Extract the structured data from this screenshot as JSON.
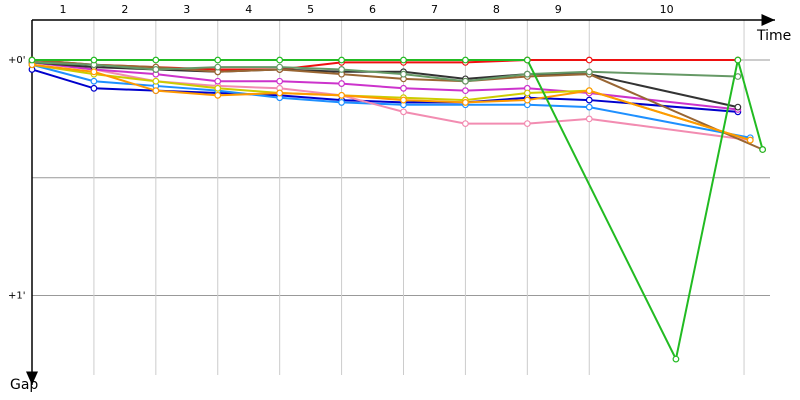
{
  "chart_data": {
    "type": "line",
    "x_label": "Time",
    "y_label": "Gap",
    "categories": [
      "1",
      "2",
      "3",
      "4",
      "5",
      "6",
      "7",
      "8",
      "9",
      "10"
    ],
    "lap_ends": [
      1,
      2,
      3,
      4,
      5,
      6,
      7,
      8,
      9,
      11.5
    ],
    "xlim": [
      0,
      12
    ],
    "ylim": [
      -0.17,
      1.38
    ],
    "yticks": [
      {
        "value": 0,
        "label": "+0'"
      },
      {
        "value": 0.5,
        "label": null
      },
      {
        "value": 1,
        "label": "+1'"
      }
    ],
    "grid": true,
    "series": [
      {
        "color": "#ee1111",
        "x": [
          0,
          1,
          2,
          3,
          4,
          5,
          6,
          7,
          8,
          9,
          11.4
        ],
        "values": [
          0,
          0.02,
          0.03,
          0.04,
          0.04,
          0.01,
          0.01,
          0.01,
          0,
          0,
          0
        ]
      },
      {
        "color": "#0000cc",
        "x": [
          0,
          1,
          2,
          3,
          4,
          5,
          6,
          7,
          8,
          9,
          11.4
        ],
        "values": [
          0.04,
          0.12,
          0.13,
          0.14,
          0.15,
          0.17,
          0.18,
          0.18,
          0.16,
          0.17,
          0.22
        ]
      },
      {
        "color": "#1e90ff",
        "x": [
          0,
          1,
          2,
          3,
          4,
          5,
          6,
          7,
          8,
          9,
          11.6
        ],
        "values": [
          0.02,
          0.09,
          0.11,
          0.13,
          0.16,
          0.18,
          0.19,
          0.19,
          0.19,
          0.2,
          0.33
        ]
      },
      {
        "color": "#f28cb1",
        "x": [
          0,
          1,
          2,
          3,
          4,
          5,
          6,
          7,
          8,
          9,
          11.6
        ],
        "values": [
          0.01,
          0.04,
          0.09,
          0.11,
          0.12,
          0.15,
          0.22,
          0.27,
          0.27,
          0.25,
          0.34
        ]
      },
      {
        "color": "#cc33cc",
        "x": [
          0,
          1,
          2,
          3,
          4,
          5,
          6,
          7,
          8,
          9,
          11.4
        ],
        "values": [
          0.01,
          0.04,
          0.06,
          0.09,
          0.09,
          0.1,
          0.12,
          0.13,
          0.12,
          0.14,
          0.21
        ]
      },
      {
        "color": "#cccc00",
        "x": [
          0,
          1,
          2,
          3,
          4,
          5,
          6,
          7,
          8,
          9,
          11.6
        ],
        "values": [
          0.02,
          0.06,
          0.09,
          0.12,
          0.14,
          0.15,
          0.16,
          0.17,
          0.14,
          0.13,
          0.34
        ]
      },
      {
        "color": "#333333",
        "x": [
          0,
          1,
          2,
          3,
          4,
          5,
          6,
          7,
          8,
          9,
          11.4
        ],
        "values": [
          0.01,
          0.03,
          0.04,
          0.05,
          0.04,
          0.05,
          0.05,
          0.08,
          0.06,
          0.06,
          0.2
        ]
      },
      {
        "color": "#996633",
        "x": [
          0,
          1,
          2,
          3,
          4,
          5,
          6,
          7,
          8,
          9,
          11.8
        ],
        "values": [
          0,
          0.02,
          0.03,
          0.05,
          0.04,
          0.06,
          0.08,
          0.09,
          0.07,
          0.06,
          0.38
        ]
      },
      {
        "color": "#669966",
        "x": [
          0,
          1,
          2,
          3,
          4,
          5,
          6,
          7,
          8,
          9,
          11.4
        ],
        "values": [
          0.01,
          0.02,
          0.04,
          0.03,
          0.03,
          0.04,
          0.06,
          0.09,
          0.06,
          0.05,
          0.07
        ]
      },
      {
        "color": "#ff9900",
        "x": [
          0,
          1,
          2,
          3,
          4,
          5,
          6,
          7,
          8,
          9,
          11.6
        ],
        "values": [
          0.02,
          0.05,
          0.13,
          0.15,
          0.14,
          0.15,
          0.17,
          0.18,
          0.17,
          0.13,
          0.34
        ]
      },
      {
        "color": "#22bb22",
        "x": [
          0,
          1,
          2,
          3,
          4,
          5,
          6,
          7,
          8,
          10.4,
          11.4,
          11.8
        ],
        "values": [
          0,
          0,
          0,
          0,
          0,
          0,
          0,
          0,
          0,
          1.27,
          0,
          0.38
        ]
      }
    ]
  }
}
